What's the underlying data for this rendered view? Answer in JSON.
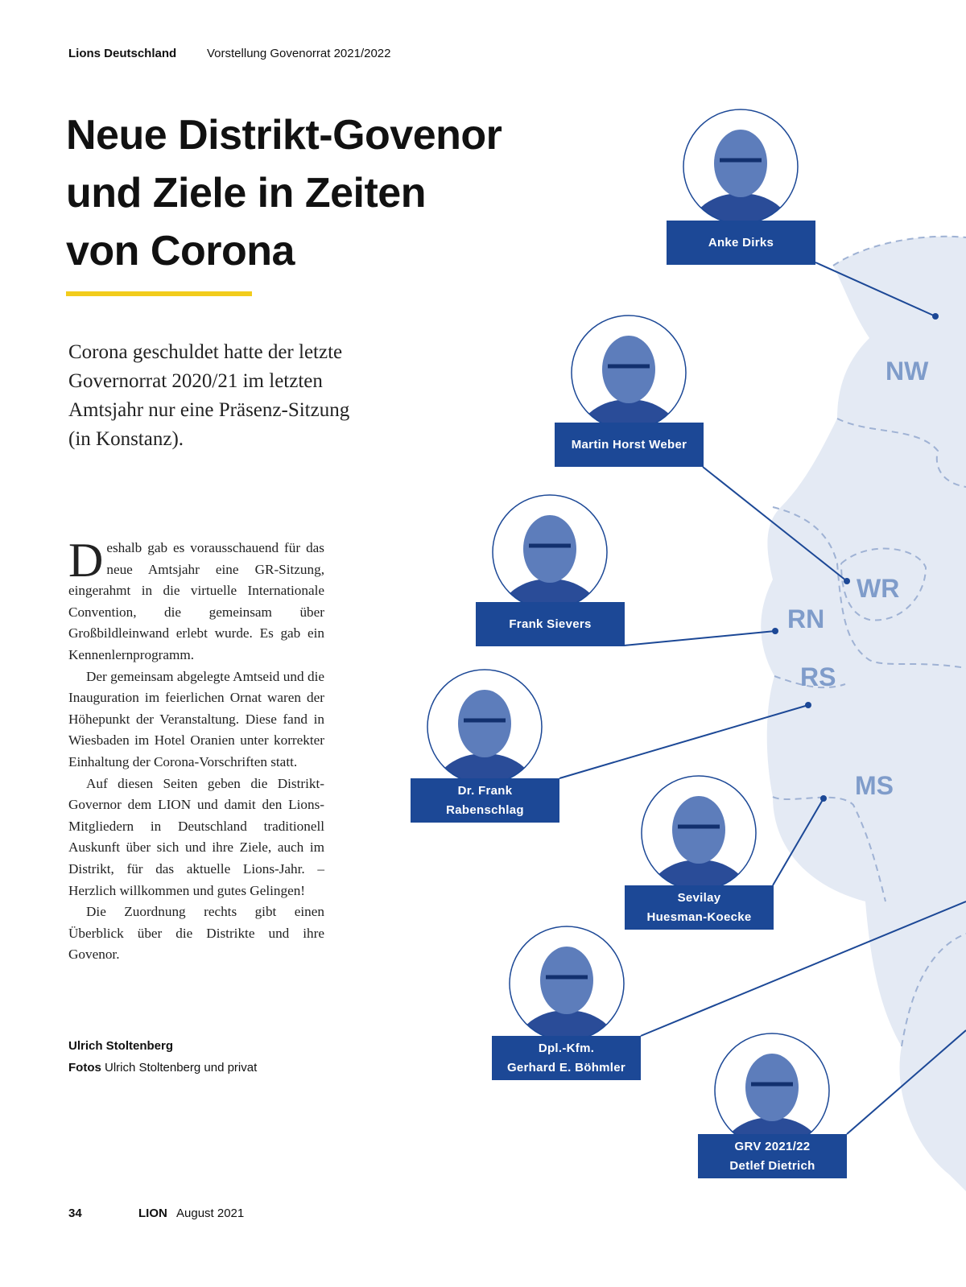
{
  "header": {
    "section": "Lions Deutschland",
    "topic": "Vorstellung Govenorrat 2021/2022"
  },
  "title": [
    "Neue Distrikt-Govenor",
    "und Ziele in Zeiten",
    "von Corona"
  ],
  "lead": [
    "Corona geschuldet hatte der letzte",
    "Governorrat 2020/21 im letzten",
    "Amtsjahr nur eine Präsenz-Sitzung",
    "(in Konstanz)."
  ],
  "body": {
    "drop_cap": "D",
    "paragraphs": [
      "eshalb gab es vorausschauend für das neue Amtsjahr eine GR-Sitzung, eingerahmt in die virtuelle Internationale Convention, die gemeinsam über Großbildleinwand erlebt wurde. Es gab ein Kennenlernprogramm.",
      "Der gemeinsam abgelegte Amtseid und die Inauguration im feierlichen Ornat waren der Höhepunkt der Veranstaltung. Diese fand in Wiesbaden im Hotel Oranien unter korrekter Einhaltung der Corona-Vorschriften statt.",
      "Auf diesen Seiten geben die Distrikt-Governor dem LION und damit den Lions-Mitgliedern in Deutschland traditionell Auskunft über sich und ihre Ziele, auch im Distrikt, für das aktuelle Lions-Jahr. – Herzlich willkommen und gutes Gelingen!",
      "Die Zuordnung rechts gibt einen Überblick über die Distrikte und ihre Govenor."
    ]
  },
  "byline": {
    "author": "Ulrich Stoltenberg",
    "photos_label": "Fotos",
    "photos": "Ulrich Stoltenberg und privat"
  },
  "map": {
    "districts": [
      "NW",
      "WR",
      "RN",
      "RS",
      "MS"
    ]
  },
  "people": [
    {
      "lines": [
        "Anke Dirks"
      ]
    },
    {
      "lines": [
        "Martin Horst Weber"
      ]
    },
    {
      "lines": [
        "Frank Sievers"
      ]
    },
    {
      "lines": [
        "Dr. Frank",
        "Rabenschlag"
      ]
    },
    {
      "lines": [
        "Sevilay",
        "Huesman-Koecke"
      ]
    },
    {
      "lines": [
        "Dpl.-Kfm.",
        "Gerhard E. Böhmler"
      ]
    },
    {
      "lines": [
        "GRV 2021/22",
        "Detlef Dietrich"
      ]
    }
  ],
  "footer": {
    "page": "34",
    "magazine": "LION",
    "issue": "August 2021"
  }
}
